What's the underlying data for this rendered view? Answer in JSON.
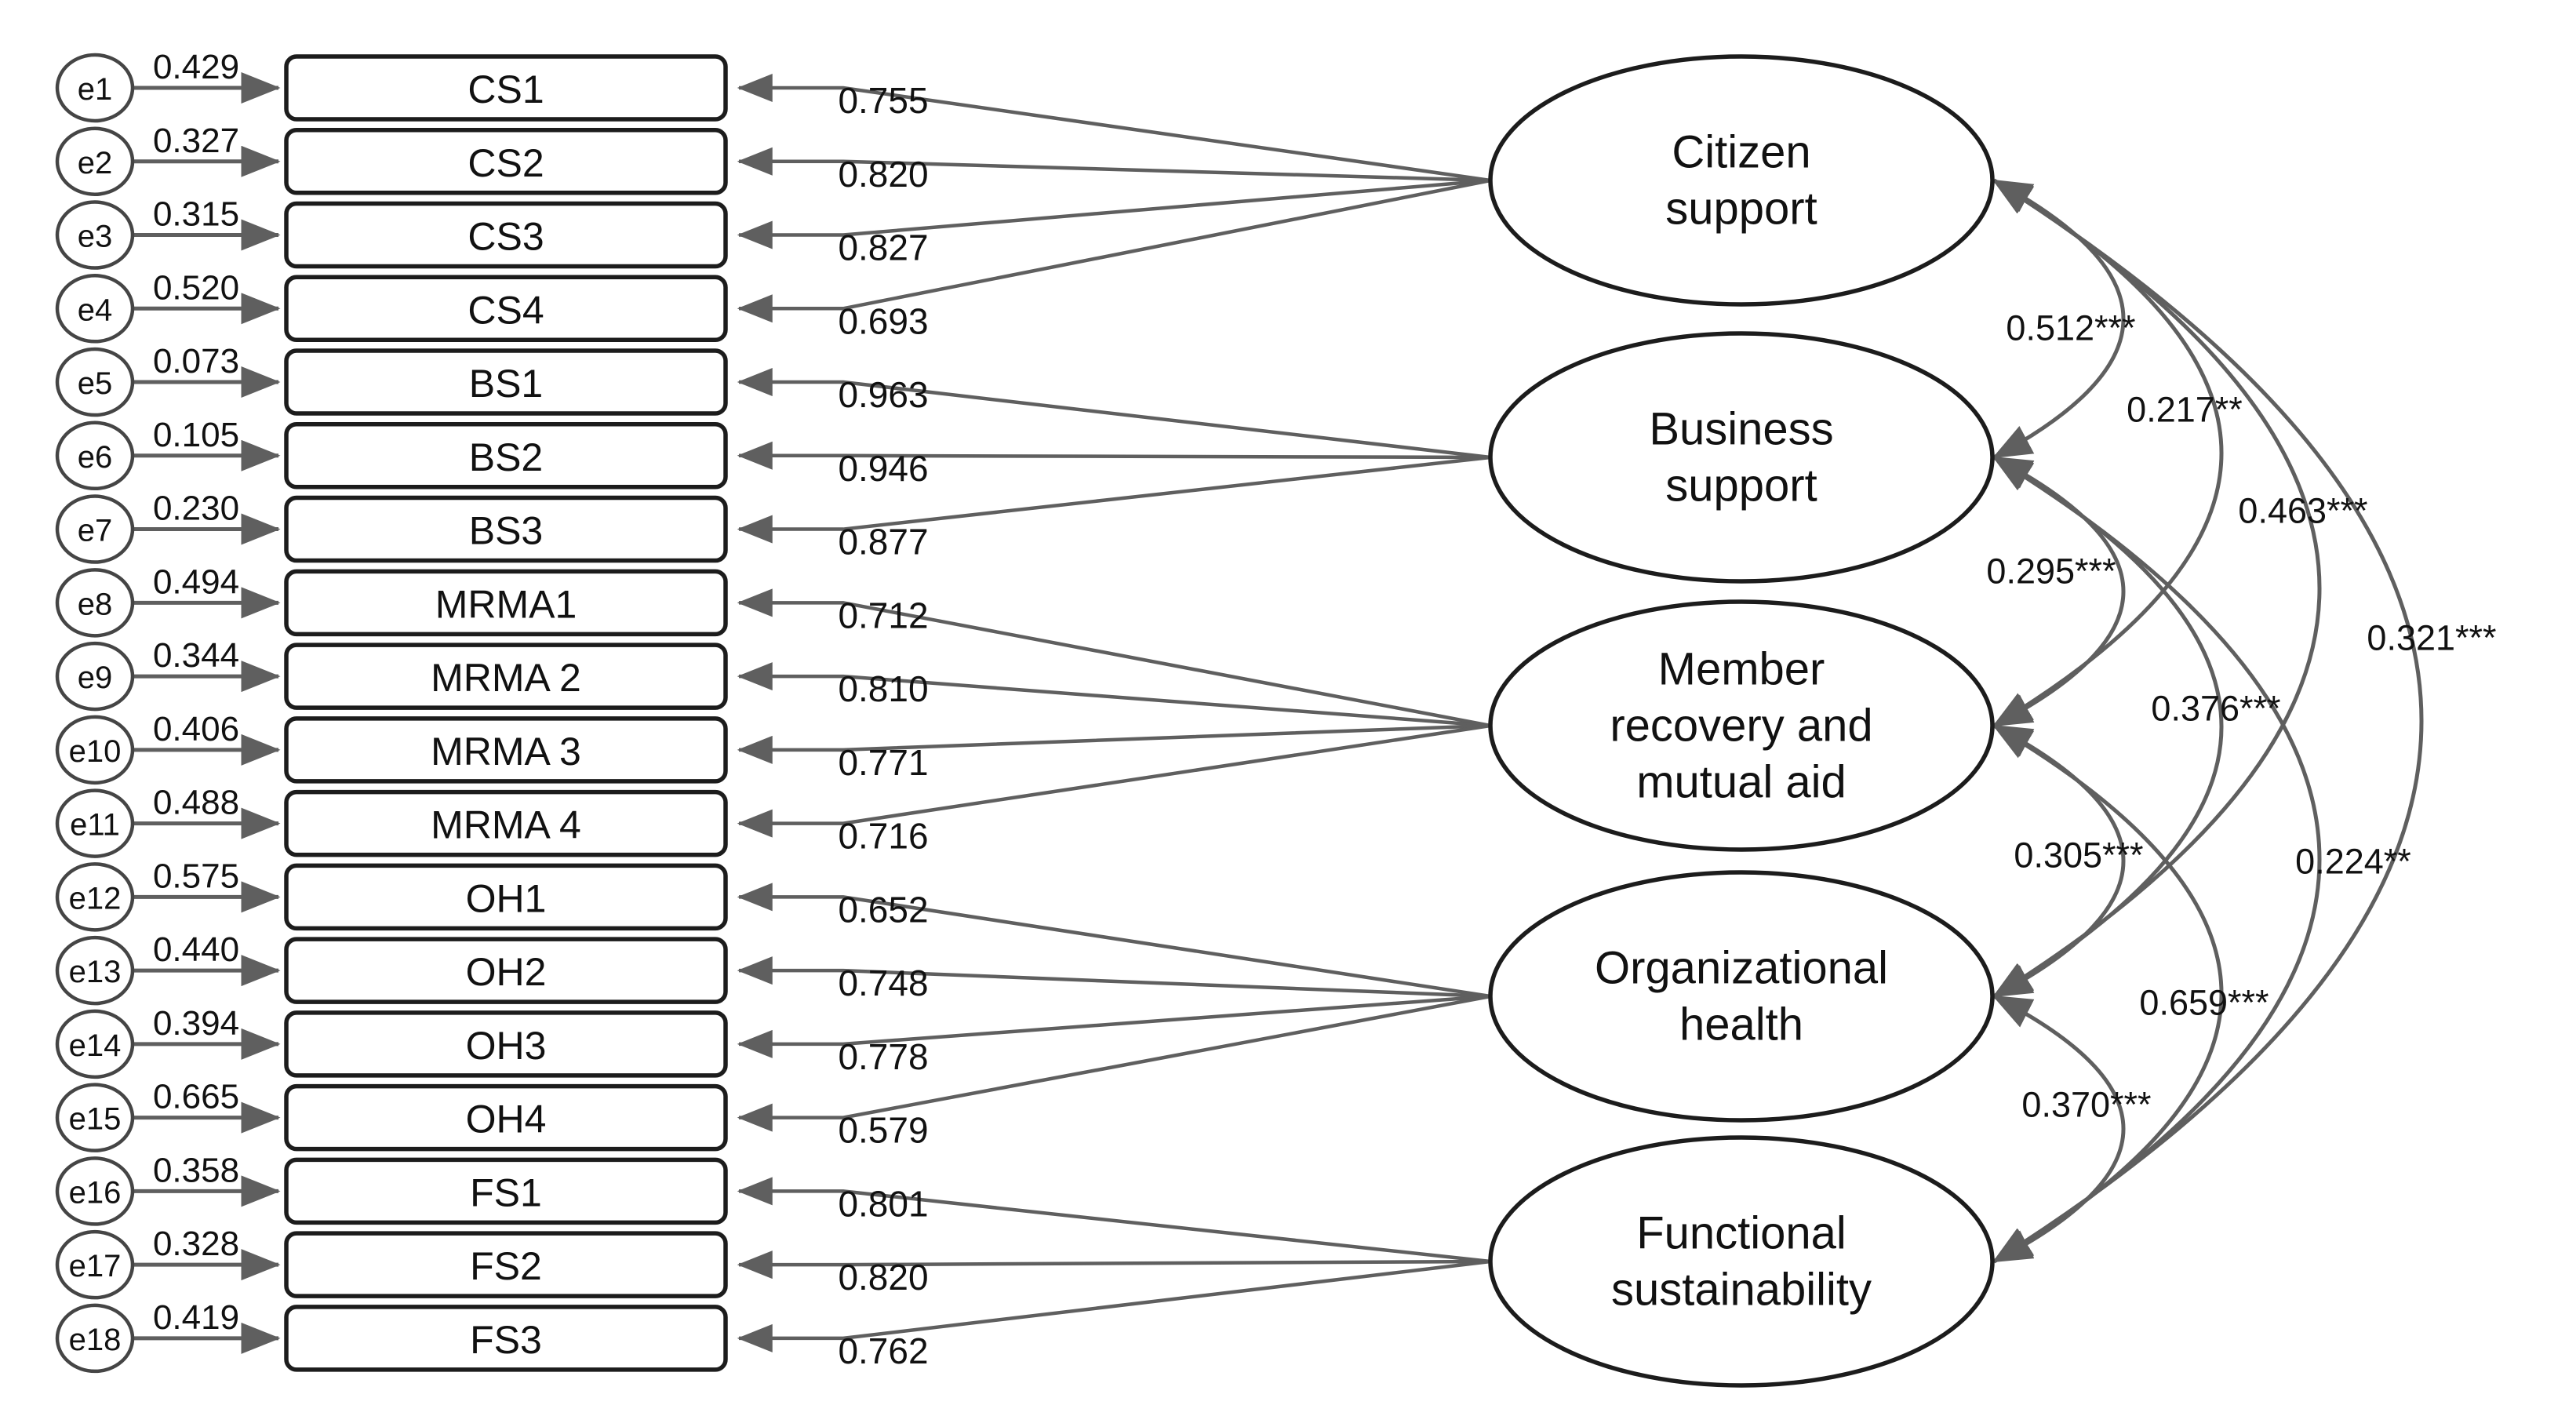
{
  "diagram_type": "confirmatory-factor-analysis-path-diagram",
  "colors": {
    "background": "#ffffff",
    "shape_stroke": "#1c1c1c",
    "error_circle_stroke": "#454545",
    "arrow": "#5f5f5f",
    "text": "#111111"
  },
  "indicators": [
    {
      "error": "e1",
      "error_variance": "0.429",
      "label": "CS1",
      "loading": "0.755",
      "factor": "citizen_support"
    },
    {
      "error": "e2",
      "error_variance": "0.327",
      "label": "CS2",
      "loading": "0.820",
      "factor": "citizen_support"
    },
    {
      "error": "e3",
      "error_variance": "0.315",
      "label": "CS3",
      "loading": "0.827",
      "factor": "citizen_support"
    },
    {
      "error": "e4",
      "error_variance": "0.520",
      "label": "CS4",
      "loading": "0.693",
      "factor": "citizen_support"
    },
    {
      "error": "e5",
      "error_variance": "0.073",
      "label": "BS1",
      "loading": "0.963",
      "factor": "business_support"
    },
    {
      "error": "e6",
      "error_variance": "0.105",
      "label": "BS2",
      "loading": "0.946",
      "factor": "business_support"
    },
    {
      "error": "e7",
      "error_variance": "0.230",
      "label": "BS3",
      "loading": "0.877",
      "factor": "business_support"
    },
    {
      "error": "e8",
      "error_variance": "0.494",
      "label": "MRMA1",
      "loading": "0.712",
      "factor": "member_recovery"
    },
    {
      "error": "e9",
      "error_variance": "0.344",
      "label": "MRMA 2",
      "loading": "0.810",
      "factor": "member_recovery"
    },
    {
      "error": "e10",
      "error_variance": "0.406",
      "label": "MRMA 3",
      "loading": "0.771",
      "factor": "member_recovery"
    },
    {
      "error": "e11",
      "error_variance": "0.488",
      "label": "MRMA 4",
      "loading": "0.716",
      "factor": "member_recovery"
    },
    {
      "error": "e12",
      "error_variance": "0.575",
      "label": "OH1",
      "loading": "0.652",
      "factor": "organizational_health"
    },
    {
      "error": "e13",
      "error_variance": "0.440",
      "label": "OH2",
      "loading": "0.748",
      "factor": "organizational_health"
    },
    {
      "error": "e14",
      "error_variance": "0.394",
      "label": "OH3",
      "loading": "0.778",
      "factor": "organizational_health"
    },
    {
      "error": "e15",
      "error_variance": "0.665",
      "label": "OH4",
      "loading": "0.579",
      "factor": "organizational_health"
    },
    {
      "error": "e16",
      "error_variance": "0.358",
      "label": "FS1",
      "loading": "0.801",
      "factor": "functional_sustainability"
    },
    {
      "error": "e17",
      "error_variance": "0.328",
      "label": "FS2",
      "loading": "0.820",
      "factor": "functional_sustainability"
    },
    {
      "error": "e18",
      "error_variance": "0.419",
      "label": "FS3",
      "loading": "0.762",
      "factor": "functional_sustainability"
    }
  ],
  "factors": [
    {
      "id": "citizen_support",
      "label": "Citizen support",
      "label_lines": [
        "Citizen",
        "support"
      ]
    },
    {
      "id": "business_support",
      "label": "Business support",
      "label_lines": [
        "Business",
        "support"
      ]
    },
    {
      "id": "member_recovery",
      "label": "Member recovery and mutual aid",
      "label_lines": [
        "Member",
        "recovery and",
        "mutual aid"
      ]
    },
    {
      "id": "organizational_health",
      "label": "Organizational health",
      "label_lines": [
        "Organizational",
        "health"
      ]
    },
    {
      "id": "functional_sustainability",
      "label": "Functional sustainability",
      "label_lines": [
        "Functional",
        "sustainability"
      ]
    }
  ],
  "correlations": [
    {
      "between": [
        "citizen_support",
        "business_support"
      ],
      "label": "0.512***"
    },
    {
      "between": [
        "citizen_support",
        "member_recovery"
      ],
      "label": "0.217**"
    },
    {
      "between": [
        "citizen_support",
        "organizational_health"
      ],
      "label": "0.463***"
    },
    {
      "between": [
        "citizen_support",
        "functional_sustainability"
      ],
      "label": "0.321***"
    },
    {
      "between": [
        "business_support",
        "member_recovery"
      ],
      "label": "0.295***"
    },
    {
      "between": [
        "business_support",
        "organizational_health"
      ],
      "label": "0.376***"
    },
    {
      "between": [
        "business_support",
        "functional_sustainability"
      ],
      "label": "0.224**"
    },
    {
      "between": [
        "member_recovery",
        "organizational_health"
      ],
      "label": "0.305***"
    },
    {
      "between": [
        "member_recovery",
        "functional_sustainability"
      ],
      "label": "0.659***"
    },
    {
      "between": [
        "organizational_health",
        "functional_sustainability"
      ],
      "label": "0.370***"
    }
  ]
}
